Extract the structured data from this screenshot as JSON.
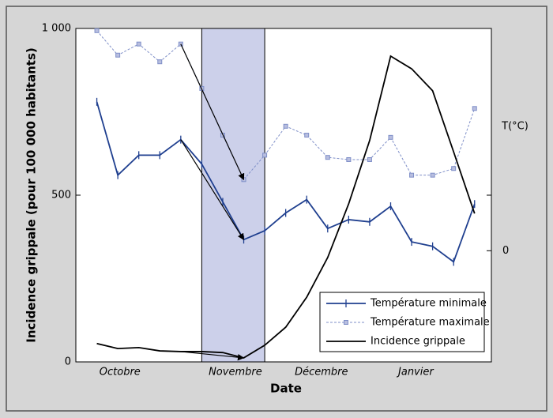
{
  "chart_data": {
    "type": "line",
    "ylabel": "Incidence grippale (pour 100 000 habitants)",
    "xlabel": "Date",
    "y2label": "T(°C)",
    "x": [
      0,
      1,
      2,
      3,
      4,
      5,
      6,
      7,
      8,
      9,
      10,
      11,
      12,
      13,
      14,
      15,
      16,
      17,
      18
    ],
    "xlim": [
      -1,
      18.8
    ],
    "xticks": [
      {
        "value": 1.1,
        "label": "Octobre"
      },
      {
        "value": 6.6,
        "label": "Novembre"
      },
      {
        "value": 10.7,
        "label": "Décembre"
      },
      {
        "value": 15.2,
        "label": "Janvier"
      }
    ],
    "ylim": [
      0,
      1000
    ],
    "yticks": [
      0,
      500,
      {
        "value": 1000,
        "label": "1 000"
      }
    ],
    "y2lim": [
      -5,
      10
    ],
    "y2ticks": [
      0
    ],
    "shaded_range": [
      5,
      8
    ],
    "legend": "lower right",
    "series": [
      {
        "name": "Température minimale",
        "color": "#1f3f8f",
        "axis": "y2",
        "marker": "tick",
        "dash": false,
        "values": [
          6.7,
          3.4,
          4.3,
          4.3,
          5.0,
          3.9,
          2.2,
          0.5,
          0.9,
          1.7,
          2.3,
          1.0,
          1.4,
          1.3,
          2.0,
          0.4,
          0.2,
          -0.5,
          2.1
        ]
      },
      {
        "name": "Température maximale",
        "color": "#7f8fc8",
        "axis": "y2",
        "marker": "square",
        "dash": true,
        "values": [
          9.9,
          8.8,
          9.3,
          8.5,
          9.3,
          7.3,
          5.2,
          3.2,
          4.3,
          5.6,
          5.2,
          4.2,
          4.1,
          4.1,
          5.1,
          3.4,
          3.4,
          3.7,
          6.4
        ]
      },
      {
        "name": "Incidence grippale",
        "color": "#000000",
        "axis": "y",
        "marker": null,
        "dash": false,
        "values": [
          55,
          40,
          43,
          33,
          31,
          31,
          28,
          12,
          50,
          104,
          194,
          313,
          474,
          664,
          917,
          879,
          813,
          630,
          445
        ]
      }
    ]
  }
}
